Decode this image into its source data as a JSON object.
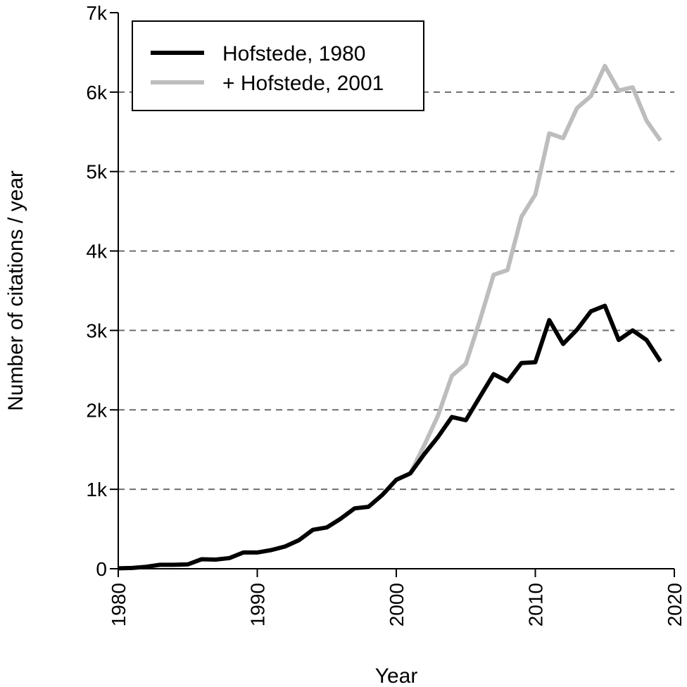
{
  "chart_data": {
    "type": "line",
    "xlabel": "Year",
    "ylabel": "Number of citations / year",
    "xlim": [
      1980,
      2020
    ],
    "ylim": [
      0,
      7000
    ],
    "x_ticks": [
      1980,
      1990,
      2000,
      2010,
      2020
    ],
    "x_tick_labels": [
      "1980",
      "1990",
      "2000",
      "2010",
      "2020"
    ],
    "y_ticks": [
      0,
      1000,
      2000,
      3000,
      4000,
      5000,
      6000,
      7000
    ],
    "y_tick_labels": [
      "0",
      "1k",
      "2k",
      "3k",
      "4k",
      "5k",
      "6k",
      "7k"
    ],
    "grid": "horizontal dashed",
    "legend_placement": "top-left",
    "series": [
      {
        "name": "+ Hofstede, 2001",
        "color": "#bdbdbd",
        "x": [
          2001,
          2002,
          2003,
          2004,
          2005,
          2006,
          2007,
          2008,
          2009,
          2010,
          2011,
          2012,
          2013,
          2014,
          2015,
          2016,
          2017,
          2018,
          2019
        ],
        "values": [
          1200,
          1550,
          1930,
          2430,
          2580,
          3120,
          3700,
          3760,
          4430,
          4710,
          5480,
          5420,
          5800,
          5950,
          6330,
          6020,
          6060,
          5640,
          5390
        ]
      },
      {
        "name": "Hofstede, 1980",
        "color": "#000000",
        "x": [
          1980,
          1981,
          1982,
          1983,
          1984,
          1985,
          1986,
          1987,
          1988,
          1989,
          1990,
          1991,
          1992,
          1993,
          1994,
          1995,
          1996,
          1997,
          1998,
          1999,
          2000,
          2001,
          2002,
          2003,
          2004,
          2005,
          2006,
          2007,
          2008,
          2009,
          2010,
          2011,
          2012,
          2013,
          2014,
          2015,
          2016,
          2017,
          2018,
          2019
        ],
        "values": [
          5,
          10,
          25,
          50,
          50,
          55,
          120,
          115,
          135,
          205,
          205,
          235,
          280,
          360,
          490,
          520,
          630,
          760,
          780,
          930,
          1120,
          1200,
          1440,
          1660,
          1910,
          1870,
          2160,
          2450,
          2360,
          2590,
          2600,
          3130,
          2830,
          3010,
          3240,
          3310,
          2880,
          3000,
          2880,
          2610
        ]
      }
    ],
    "legend": [
      {
        "label": "Hofstede, 1980",
        "color": "#000000"
      },
      {
        "label": "+ Hofstede, 2001",
        "color": "#bdbdbd"
      }
    ]
  }
}
